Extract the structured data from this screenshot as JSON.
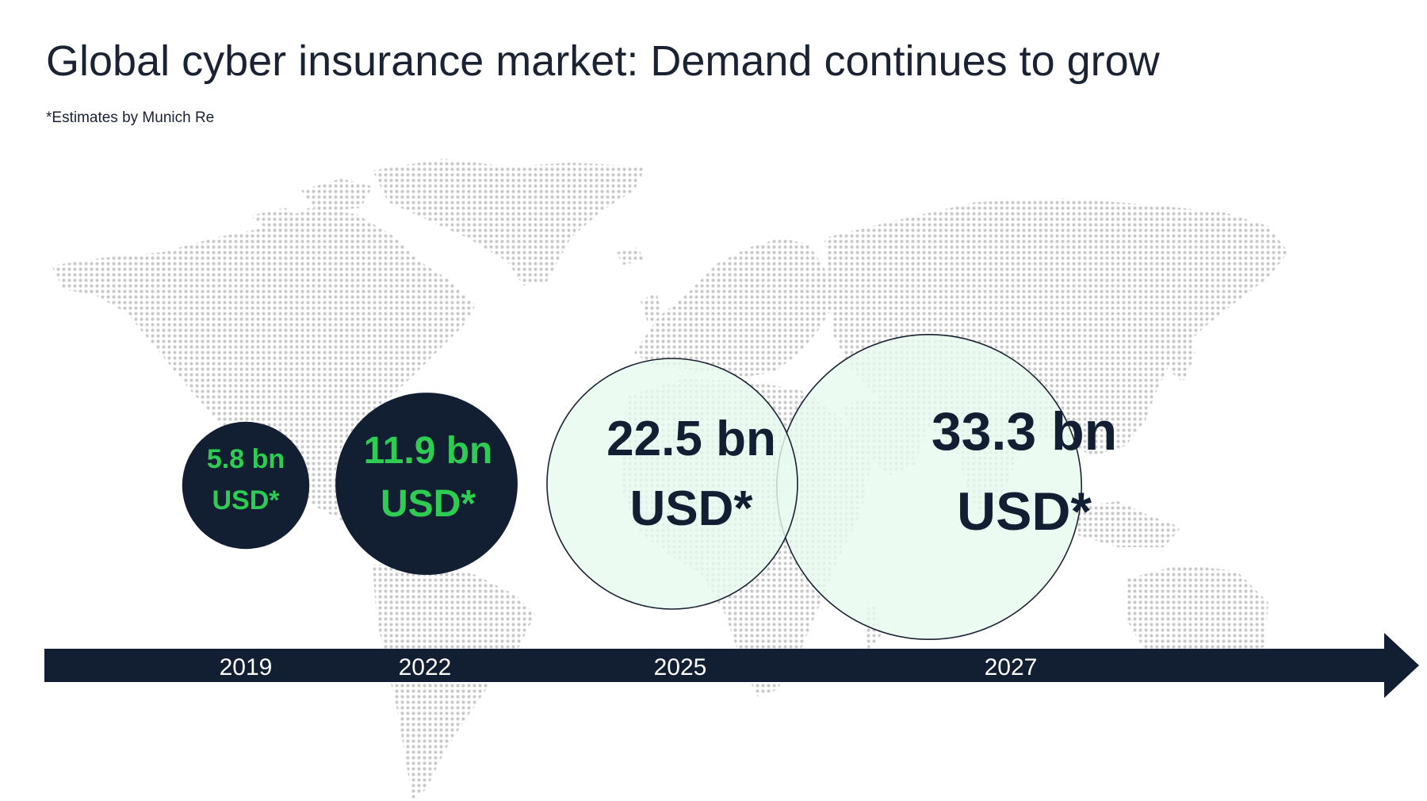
{
  "header": {
    "title": "Global cyber insurance market: Demand continues to grow",
    "subtitle": "*Estimates by Munich Re"
  },
  "colors": {
    "navy": "#121f33",
    "accent_green": "#2ecc52",
    "light_green": "#e8faef",
    "map_gray": "#c9c9c9"
  },
  "chart_data": {
    "type": "bubble",
    "title": "Global cyber insurance market: Demand continues to grow",
    "subtitle": "*Estimates by Munich Re",
    "unit": "bn USD",
    "categories": [
      "2019",
      "2022",
      "2025",
      "2027"
    ],
    "values": [
      5.8,
      11.9,
      22.5,
      33.3
    ],
    "labels": [
      {
        "line1": "5.8 bn",
        "line2": "USD*"
      },
      {
        "line1": "11.9 bn",
        "line2": "USD*"
      },
      {
        "line1": "22.5 bn",
        "line2": "USD*"
      },
      {
        "line1": "33.3 bn",
        "line2": "USD*"
      }
    ],
    "bubble_style": [
      "dark",
      "dark",
      "light",
      "light"
    ],
    "background": "world map"
  }
}
